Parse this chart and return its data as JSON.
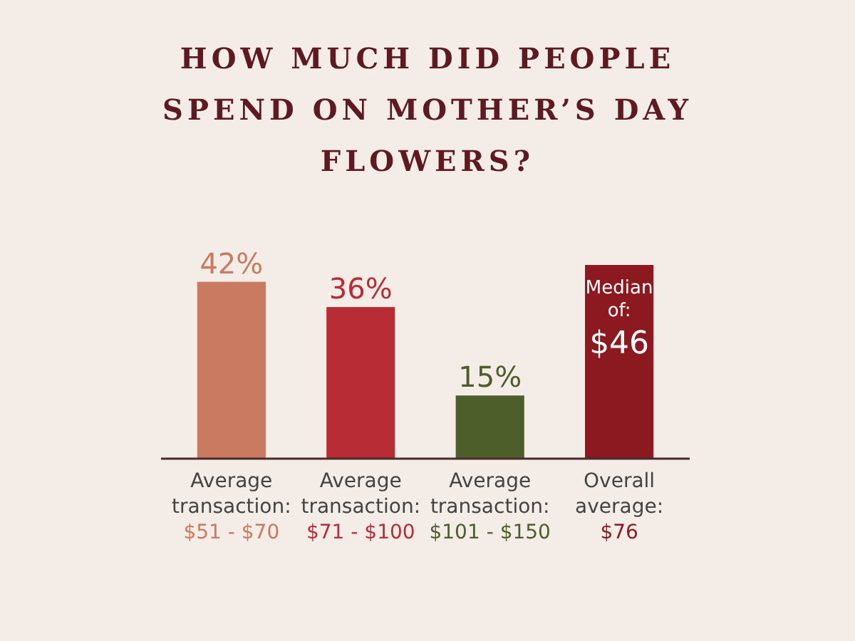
{
  "chart_data": {
    "type": "bar",
    "title": "HOW MUCH DID PEOPLE SPEND ON MOTHER’S DAY FLOWERS?",
    "categories": [
      "Average transaction: $51 - $70",
      "Average transaction: $71 - $100",
      "Average transaction: $101 - $150",
      "Overall average: $76"
    ],
    "values": [
      42,
      36,
      15,
      46
    ],
    "value_labels": [
      "42%",
      "36%",
      "15%",
      "$46"
    ],
    "colors": [
      "#c97a60",
      "#b82c35",
      "#4d5e2a",
      "#8c1820"
    ],
    "annotations": [
      {
        "text": "Median of:",
        "x": "Overall average: $76",
        "y": 46
      }
    ]
  }
}
